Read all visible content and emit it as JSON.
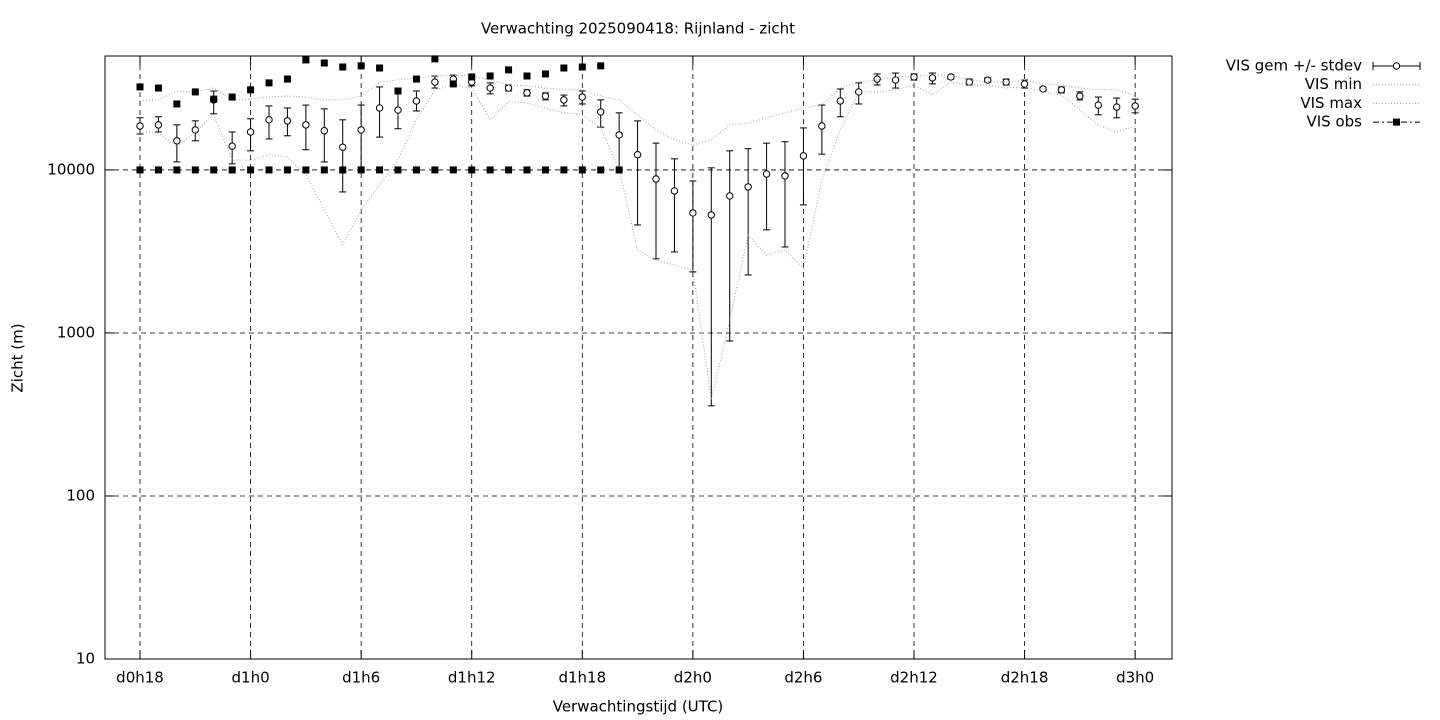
{
  "chart_data": {
    "type": "errorbar",
    "title": "Verwachting 2025090418: Rijnland - zicht",
    "xlabel": "Verwachtingstijd (UTC)",
    "ylabel": "Zicht (m)",
    "log_y": true,
    "grid": true,
    "legend": "outside-right-top",
    "xlim": [
      16.1,
      74
    ],
    "xticks": [
      {
        "value": 18,
        "label": "d0h18"
      },
      {
        "value": 24,
        "label": "d1h0"
      },
      {
        "value": 30,
        "label": "d1h6"
      },
      {
        "value": 36,
        "label": "d1h12"
      },
      {
        "value": 42,
        "label": "d1h18"
      },
      {
        "value": 48,
        "label": "d2h0"
      },
      {
        "value": 54,
        "label": "d2h6"
      },
      {
        "value": 60,
        "label": "d2h12"
      },
      {
        "value": 66,
        "label": "d2h18"
      },
      {
        "value": 72,
        "label": "d3h0"
      }
    ],
    "ylim": [
      10,
      50000
    ],
    "yticks": [
      10,
      100,
      1000,
      10000
    ],
    "series": [
      {
        "name": "VIS gem +/- stdev",
        "type": "errorbar",
        "color": "#000000",
        "x": [
          18,
          19,
          20,
          21,
          22,
          23,
          24,
          25,
          26,
          27,
          28,
          29,
          30,
          31,
          32,
          33,
          34,
          35,
          36,
          37,
          38,
          39,
          40,
          41,
          42,
          43,
          44,
          45,
          46,
          47,
          48,
          49,
          50,
          51,
          52,
          53,
          54,
          55,
          56,
          57,
          58,
          59,
          60,
          61,
          62,
          63,
          64,
          65,
          66,
          67,
          68,
          69,
          70,
          71,
          72
        ],
        "values": [
          18600,
          18900,
          15100,
          17600,
          26900,
          14000,
          17100,
          20300,
          20000,
          18900,
          17400,
          13800,
          17600,
          24000,
          23300,
          26500,
          34600,
          36100,
          34600,
          31800,
          31800,
          29700,
          28400,
          26900,
          28000,
          22700,
          16400,
          12400,
          8810,
          7430,
          5450,
          5300,
          6930,
          7870,
          9450,
          9190,
          12200,
          18600,
          26500,
          30100,
          36100,
          35600,
          37200,
          36700,
          37200,
          34600,
          35600,
          34600,
          33700,
          31400,
          31000,
          28400,
          25000,
          24300,
          24700
        ],
        "low": [
          16600,
          17100,
          11200,
          15100,
          22100,
          10900,
          13100,
          15500,
          16200,
          13300,
          11200,
          7330,
          10000,
          15900,
          17900,
          23000,
          31800,
          33700,
          32800,
          29300,
          30500,
          28400,
          26900,
          24700,
          25400,
          18300,
          10000,
          4600,
          2850,
          3140,
          2370,
          357,
          893,
          2270,
          4290,
          3370,
          6100,
          12500,
          21200,
          25400,
          33200,
          31800,
          35600,
          33700,
          36100,
          33200,
          34600,
          33200,
          31800,
          30500,
          29700,
          26900,
          21800,
          20900,
          22400
        ],
        "high": [
          20900,
          21200,
          18900,
          20000,
          30500,
          17100,
          20600,
          24700,
          24000,
          25000,
          23700,
          20300,
          25000,
          32300,
          30500,
          30500,
          37700,
          38200,
          36700,
          34200,
          33200,
          31000,
          29700,
          28800,
          30500,
          26900,
          22400,
          20000,
          14600,
          11700,
          8560,
          10300,
          13100,
          13500,
          14600,
          14900,
          18100,
          25000,
          31400,
          34200,
          38800,
          39300,
          38800,
          39300,
          38200,
          36100,
          36700,
          36100,
          35600,
          32300,
          32300,
          30100,
          28000,
          27600,
          27200
        ]
      },
      {
        "name": "VIS min",
        "type": "line",
        "color": "#a0a0a0",
        "x": [
          18,
          19,
          20,
          21,
          22,
          23,
          24,
          25,
          26,
          27,
          28,
          29,
          30,
          31,
          32,
          33,
          34,
          35,
          36,
          37,
          38,
          39,
          40,
          41,
          42,
          43,
          44,
          45,
          46,
          47,
          48,
          49,
          50,
          51,
          52,
          53,
          54,
          55,
          56,
          57,
          58,
          59,
          60,
          61,
          62,
          63,
          64,
          65,
          66,
          67,
          68,
          69,
          70,
          71,
          72
        ],
        "values": [
          17100,
          16900,
          13800,
          17100,
          21800,
          11500,
          11500,
          12400,
          12000,
          9320,
          5680,
          3470,
          5680,
          8090,
          11500,
          20300,
          31000,
          33200,
          31800,
          20300,
          26200,
          25800,
          24000,
          22400,
          21800,
          18100,
          10000,
          3230,
          2800,
          2610,
          2430,
          388,
          1200,
          3990,
          3010,
          3230,
          2500,
          8680,
          17600,
          30100,
          30100,
          31000,
          33200,
          28800,
          34600,
          33200,
          33200,
          31800,
          32300,
          30100,
          28800,
          23300,
          18900,
          17100,
          18600
        ]
      },
      {
        "name": "VIS max",
        "type": "line",
        "color": "#a0a0a0",
        "x": [
          18,
          19,
          20,
          21,
          22,
          23,
          24,
          25,
          26,
          27,
          28,
          29,
          30,
          31,
          32,
          33,
          34,
          35,
          36,
          37,
          38,
          39,
          40,
          41,
          42,
          43,
          44,
          45,
          46,
          47,
          48,
          49,
          50,
          51,
          52,
          53,
          54,
          55,
          56,
          57,
          58,
          59,
          60,
          61,
          62,
          63,
          64,
          65,
          66,
          67,
          68,
          69,
          70,
          71,
          72
        ],
        "values": [
          26500,
          26900,
          30500,
          30100,
          31800,
          26900,
          27200,
          28000,
          28400,
          28000,
          26900,
          26900,
          28400,
          34600,
          35600,
          36700,
          37700,
          38200,
          37700,
          35600,
          33200,
          32800,
          31800,
          31000,
          31000,
          28400,
          26900,
          21800,
          17600,
          15300,
          14200,
          15300,
          18900,
          19400,
          20900,
          22400,
          24000,
          25000,
          31800,
          34600,
          35600,
          37200,
          37700,
          38200,
          38200,
          35600,
          34600,
          34600,
          35600,
          33700,
          33200,
          31800,
          31000,
          31000,
          28400
        ]
      },
      {
        "name": "VIS obs",
        "type": "points",
        "color": "#000000",
        "x": [
          18,
          19,
          20,
          21,
          22,
          23,
          24,
          25,
          26,
          27,
          28,
          29,
          30,
          31,
          32,
          33,
          34,
          35,
          36,
          37,
          38,
          39,
          40,
          41,
          42,
          43,
          18,
          19,
          20,
          21,
          22,
          23,
          24,
          25,
          26,
          27,
          28,
          29,
          30,
          31,
          32,
          33,
          34,
          35,
          36,
          37,
          38,
          39,
          40,
          41,
          42,
          43,
          44
        ],
        "values": [
          32300,
          31800,
          25400,
          30100,
          27200,
          28000,
          31000,
          34200,
          36100,
          47300,
          45300,
          42800,
          43500,
          42200,
          30500,
          36100,
          48000,
          33700,
          37200,
          37700,
          41100,
          37700,
          38800,
          42200,
          42800,
          43500,
          10000,
          10000,
          10000,
          10000,
          10000,
          10000,
          10000,
          10000,
          10000,
          10000,
          10000,
          10000,
          10000,
          10000,
          10000,
          10000,
          10000,
          10000,
          10000,
          10000,
          10000,
          10000,
          10000,
          10000,
          10000,
          10000,
          10000
        ]
      }
    ]
  }
}
